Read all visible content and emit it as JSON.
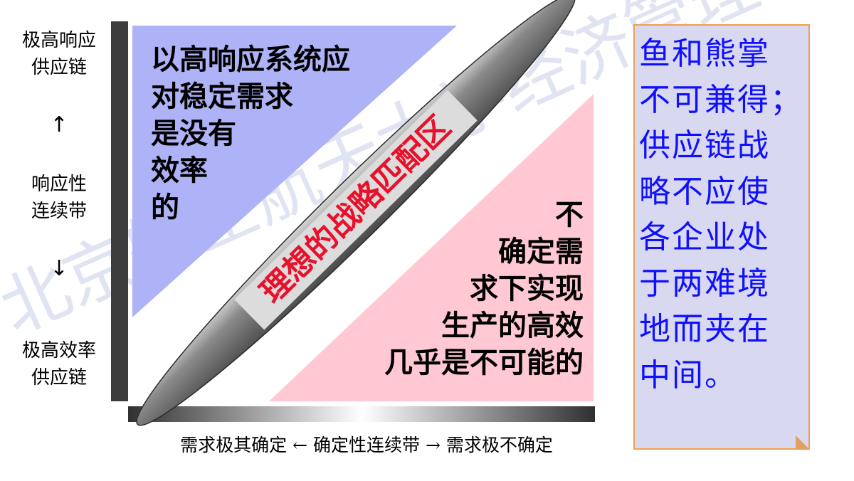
{
  "axes": {
    "y_top": "极高响应\n供应链",
    "y_mid": "响应性\n连续带",
    "y_bottom": "极高效率\n供应链",
    "y_arrow_up": "↑",
    "y_arrow_down": "↓",
    "x_left": "需求极其确定",
    "x_arrow_left": "←",
    "x_mid": "确定性连续带",
    "x_arrow_right": "→",
    "x_right": "需求极不确定"
  },
  "regions": {
    "top_left": "以高响应系统应\n对稳定需求\n是没有\n效率\n的",
    "bottom_right": "不\n确定需\n求下实现\n生产的高效\n几乎是不可能的",
    "diagonal_label": "理想的战略匹配区"
  },
  "callout": {
    "text": "鱼和熊掌\n不可兼得；\n供应链战\n略不应使\n各企业处\n于两难境\n地而夹在\n中间。"
  },
  "watermark": {
    "text": "北京航空航天大学经济管理学院"
  },
  "colors": {
    "top_left_fill": "#aeb2f6",
    "bottom_right_fill": "#ffc8d2",
    "diagonal_label_color": "#e8102a",
    "callout_fill": "#d8d8f0",
    "callout_border": "#f0a050",
    "callout_text": "#1010ff"
  }
}
